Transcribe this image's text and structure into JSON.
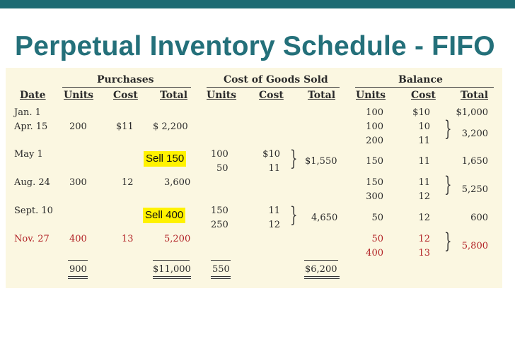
{
  "page": {
    "title": "Perpetual Inventory Schedule - FIFO"
  },
  "headers": {
    "purchases": "Purchases",
    "cogs": "Cost of Goods Sold",
    "balance": "Balance",
    "date": "Date",
    "p_units": "Units",
    "p_cost": "Cost",
    "p_total": "Total",
    "c_units": "Units",
    "c_cost": "Cost",
    "c_total": "Total",
    "b_units": "Units",
    "b_cost": "Cost",
    "b_total": "Total"
  },
  "rows": {
    "jan1": {
      "date": "Jan.  1",
      "b_units": [
        "100"
      ],
      "b_cost": [
        "$10"
      ],
      "b_total": "$1,000"
    },
    "apr15": {
      "date": "Apr. 15",
      "p_units": "200",
      "p_cost": "$11",
      "p_total": "$ 2,200",
      "b_units": [
        "100",
        "200"
      ],
      "b_cost": [
        "10",
        "11"
      ],
      "b_total": "3,200"
    },
    "may1": {
      "date": "May  1",
      "note": "Sell 150",
      "c_units": [
        "100",
        "50"
      ],
      "c_cost": [
        "$10",
        "11"
      ],
      "c_total": "$1,550",
      "b_units": [
        "150"
      ],
      "b_cost": [
        "11"
      ],
      "b_total": "1,650"
    },
    "aug24": {
      "date": "Aug. 24",
      "p_units": "300",
      "p_cost": "12",
      "p_total": "3,600",
      "b_units": [
        "150",
        "300"
      ],
      "b_cost": [
        "11",
        "12"
      ],
      "b_total": "5,250"
    },
    "sep10": {
      "date": "Sept. 10",
      "note": "Sell 400",
      "c_units": [
        "150",
        "250"
      ],
      "c_cost": [
        "11",
        "12"
      ],
      "c_total": "4,650",
      "b_units": [
        "50"
      ],
      "b_cost": [
        "12"
      ],
      "b_total": "600"
    },
    "nov27": {
      "date": "Nov. 27",
      "p_units": "400",
      "p_cost": "13",
      "p_total": "5,200",
      "b_units": [
        "50",
        "400"
      ],
      "b_cost": [
        "12",
        "13"
      ],
      "b_total": "5,800"
    }
  },
  "totals": {
    "p_units": "900",
    "p_total": "$11,000",
    "c_units": "550",
    "c_total": "$6,200"
  },
  "colors": {
    "title": "#24707a",
    "topbar": "#1d6b73",
    "panel": "#fbf7e1",
    "red_row": "#b22226",
    "highlight": "#fff200"
  }
}
